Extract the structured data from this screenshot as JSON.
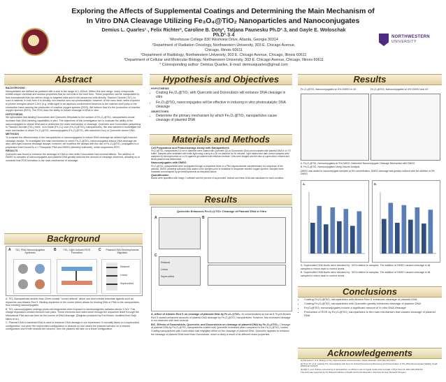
{
  "title": {
    "line1": "Exploring the Affects of Supplemental Coatings and Determining the Main Mechanism of",
    "line2": "In Vitro DNA Cleavage Utilizing Fe₃O₄@TiO₂ Nanoparticles and Nanoconjugates"
  },
  "authors": {
    "names": "Demius L. Quarles¹˒, Felix Richter², Caroline B. Doty², Tatjana Paunesku Ph.D²˒3, and Gayle E. Woloschak Ph.D²˒3˒4",
    "aff1": "¹Morehouse College 830 Westview Drive, Atlanta, Georgia 30314",
    "aff2": "²Department of Radiation Oncology, Northwestern University, 303 E. Chicago Avenue,",
    "aff2b": "Chicago, Illinois 60611",
    "aff3": "³Department of Radiology, Northwestern University, 303 E. Chicago Avenue, Chicago, Illinois 60611",
    "aff4": "⁴Department of Cellular and Molecular Biology, Northwestern University, 303 E. Chicago Avenue, Chicago, Illinois 60611",
    "corr": "* Corresponding author: Demius Quarles, E-mail: demiusquarles@gmail.com"
  },
  "logos": {
    "left": "Morehouse College seal",
    "right": "NORTHWESTERN UNIVERSITY"
  },
  "sections": {
    "abstract": {
      "header": "Abstract",
      "background_label": "BACKGROUND",
      "background": "Nanoparticles are defined as particles with a size in the range of 1-100nm. Within this size range, many compounds exhibit unique chemical and surface properties that do not exist in the bulk form. These properties can be manipulated to form biomaterials that can deliver drugs to targeted sites and to kill cancerous cells directly. Titanium Dioxide (TiO₂) is such a material. In bulk form it is virtually non-reactive and non-photocatalytic; however, at the nano level, when exposed to photon energies above 3.2eV (e.g. white light) in an aqueous environment electrons in the valence shell jump to the conduction band causing the production of reactive oxygen species (ROS). We believe that it is the production of reactive oxygen species (ROS). The ROS have the ability to induce cleavage of DNA in vitro.",
      "hypothesis_label": "HYPOTHESIS",
      "hypothesis": "We speculated that binding Doxorubicin and Quercetin Dihydrate to the surface of Fe₃O₄@TiO₂ nanoparticles would increase their DNA cleaving capabilities in vitro. The objectives of this investigation are to evaluate the ability of the nanoconjugates to cleave DNA and to determine the main mechanism of cleavage. Quercetin and Doxorubicin (adsorbing to Titanium Dioxide (TiO₂) shell - iron Oxide (Fe₃O₄) core (Fe₃O₄@TiO₂) nanoparticles). We also wanted to investigate the main mechanism in which Fe₃O₄@TiO₂ nanoconjugates (Fe₃O₄@TiO₂ with adsorbed Dox) or Quercetin cleave DNA.",
      "methods_label": "METHODS",
      "methods": "To evaluate the effectiveness of the nanoparticles or nanoconjugates to induce DNA cleavage we utilized light-induced cleavage assays. To investigate the main mechanism in which Fe₃O₄@TiO₂ nanoconjugates induce DNA cleavage we also used light-induced cleavage assays; however, we modified the assays with the use of Fe₃O₄@TiO₂ conjugated to a polyamine linker bound to a 1 Thiocyanin PNA and DMSO (dimethyl sulfoxide), which sequesters ROS.",
      "results_label": "RESULTS",
      "results": "Quercetin was found to enhance the cleavage of DNA in vitro while Doxorubicin had minimal affects. The addition of DMSO to samples of nanoconjugates and plasmid DNA greatly reduced the amount of cleavage observed, allowing us to conclude that ROS formation is the main mechanism of cleavage."
    },
    "background": {
      "header": "Background",
      "figA": "TiO₂ PNA Nanoconjugates Synthesis",
      "figB": "TiO₂ Light-Induced ROS Formation",
      "figC": "Plasmid DNA Electrophoresis Migration",
      "labelA": "A",
      "labelB": "B",
      "labelC": "C",
      "capA": "A. TiO₂ Nanoparticles smaller than 20nm contain \"corner defects\" which can bind enediol bidentate ligands such as dopamine and Alizarin Red S. Binding dopamine to the corner defect allows for binding DNA or PNA to the nanoparticles, thus creating nanoconjugates.",
      "capB": "B. TiO₂ nanoconjugates undergo photo-electrogenesis when exposed to electromagnetic radiation above 3.2eV. This charge separation creates electron-hole pairs. These electrons and holes travel through the dopamine linker through the bifunctional PNA and can then be the source of DNA cleavage. (Diagram produced by Eric Brown, modified from Rajh Nikos et al.)",
      "capC": "C. Plasmid DNA or bacterial DNA is used to measure DNA damage in our experiment. It normally takes on a supercoiled configuration, but when the supercoiled configuration is cleaved on one strand the plasmid will take on a relaxed configuration and if both strands are cleaved, then the plasmid will take on a linear configuration."
    },
    "hypothesis": {
      "header": "Hypothesis and Objectives",
      "hyp_label": "HYPOTHESIS",
      "hyp1": "Coating Fe₃O₄@TiO₂ with Quercetin and Doxorubicin will enhance DNA cleavage in vitro",
      "hyp2": "Fe₃O₄@TiO₂ nanoconjugates will be effective in inducing in vitro photocatalytic DNA cleavage",
      "obj_label": "OBJECTIVES",
      "obj1": "Determine the primary mechanism by which Fe₃O₄@TiO₂ nanoparticles cause cleavage of plasmid DNA"
    },
    "materials": {
      "header": "Materials and Methods",
      "p1_label": "Cell Preparation and Photocleavage Assay with Nanoparticles",
      "p1": "Fe₃O₄@TiO₂ nanoparticles 6.5 nm in diameter were coated with Quercetin (Q) or Doxorubicin (Dox) and incubated with plasmid DNA in 1x TE buffer. Samples were irradiated with white light using a lamp at a 30 cm distance for 30 minutes. Light treated and dark control samples were analyzed by electrophoresis on a 1% agarose gel stained with ethidium bromide. Gels were imaged and the ratio of supercoiled, relaxed and linear plasmid was determined.",
      "p2_label": "Nanoconjugates with DMSO",
      "p2": "Fe₃O₄@TiO₂ nanoparticles were conjugated through a polyamine linker to a PNA oligonucleotide complementary to a sequence of the plasmid. DMSO (dimethyl sulfoxide) was added to the samples prior to irradiation to sequester reactive oxygen species. Samples were irradiated and analyzed by gel electrophoresis as described above.",
      "p3_label": "Quantification",
      "p3": "Bands were quantified with Image J software and the percent of supercoiled, relaxed and linear DNA was calculated for each condition."
    },
    "results_mid": {
      "header": "Results",
      "fig_title": "Quercetin Enhances Fe₃O₄@TiO₂ Cleavage of Plasmid DNA in Vitro",
      "labelA": "A",
      "labelB": "B",
      "labelC": "C",
      "capA_label": "A. Affect of Alizarin Red S on cleavage of plasmid DNA by Fe₃O₄@TiO₂.",
      "capA": "At concentrations as low as 8.75 μM Alizarin Red S causes enhanced amounts of plasmid DNA cleavage by Fe₃O₄@TiO₂ nanoparticles. However, this increased cleavage is not observed with dark controls.",
      "capB_label": "B/C. Effects of Doxorubicin, Quercetin, and Doxorubicin on cleavage of plasmid DNA by Fe₃O₄@TiO₂.",
      "capB": "Cleavage of plasmid DNA by Fe₃O₄@TiO₂ nanoparticles coated with Quercetin increased when compared to the Fe₃O₄@TiO₂ control. Coating nanoparticles with Doxorubicin had negligible effect on the cleavage of plasmid DNA. Quercetin appears to enhance the cleavage of plasmid DNA more than Doxorubicin, which is likely a result of its different redox properties."
    },
    "results_right": {
      "header": "Results",
      "gel1_title": "Fe₃O₄@TiO₂ Nanoconjugates w/ 5% DMSO in 4X",
      "gel2_title": "Fe₃O₄@TiO₂ Nanoconjugates w/ 5% DMSO and 4X",
      "capA": "A. Fe₃O₄@TiO₂ Nanoconjugates w/ 5% DMSO. Determine Nanoconjugate Cleavage Mechanism with DMSO",
      "capB": "B. Fe₃O₄@TiO₂ Nanoconjugates Using Volume Analysis",
      "capText": "DMSO was added to nanoconjugate samples at 5% concentration. DMSO cleavage was greatly reduced with the addition of 5% DMSO.",
      "chartA": "A.",
      "chartB": "B.",
      "capC": "A. Supercoiled DNA levels were elevated by ~30% relative to samples. The addition of DMSO caused cleavage in all samples to return back to control levels.",
      "capD": "B. Supercoiled DNA levels were elevated by ~30% relative to samples. The addition of DMSO caused cleavage in all samples to return back to control levels."
    },
    "conclusions": {
      "header": "Conclusions",
      "c1": "Coating Fe₃O₄@TiO₂ nanoparticles with Alizarin Red S enhances cleavage of plasmid DNA",
      "c2": "Coating Fe₃O₄@TiO₂ nanoparticles with Quercetin greatly enhances cleavage of plasmid DNA",
      "c3": "Fe₃O₄@TiO₂ nanoconjugates induce a significant amount of in vitro DNA cleavage",
      "c4": "Production of ROS by Fe₃O₄@TiO₂ nanoparticles is the main mechanism that causes cleavage of plasmid DNA"
    },
    "ack": {
      "header": "Acknowledgements",
      "t1": "[1] Paunesku T, et al. Biology of TiO₂-oligonucleotide nanocomposites. Nature Materials. 2003 May;2(5):343-6.",
      "t2": "[2] Thurn KT, et al. Labeling TiO₂ Nanoparticles with Dyes for Optical Fluorescence Microscopy and Determination of TiO₂-DNA Nanoconjugate Stability. Small. 2009;5(11):1318-25.",
      "t3": "[3] Rajh T, et al. Surface restructuring of nanoparticles: an efficient route for ligand-metal oxide crosstalk. J Phys Chem B. 2002;106:10543-52.",
      "t4": "This work was supported by the National Institutes of Health and the Northwestern University Summer Research Program."
    }
  },
  "gel_labels": {
    "left": [
      "Relaxed",
      "Linear",
      "Supercoiled"
    ],
    "mid_c": [
      "Relaxed",
      "Linear",
      "Supercoiled"
    ]
  },
  "chart_data": [
    {
      "type": "bar",
      "title": "",
      "categories": [
        "1",
        "2",
        "3",
        "4",
        "5",
        "6",
        "7",
        "8"
      ],
      "values": [
        40,
        62,
        38,
        60,
        42,
        58,
        36,
        55
      ]
    },
    {
      "type": "bar",
      "title": "",
      "categories": [
        "1",
        "2",
        "3",
        "4",
        "5",
        "6",
        "7",
        "8"
      ],
      "values": [
        45,
        66,
        40,
        63,
        44,
        60,
        39,
        57
      ]
    }
  ]
}
